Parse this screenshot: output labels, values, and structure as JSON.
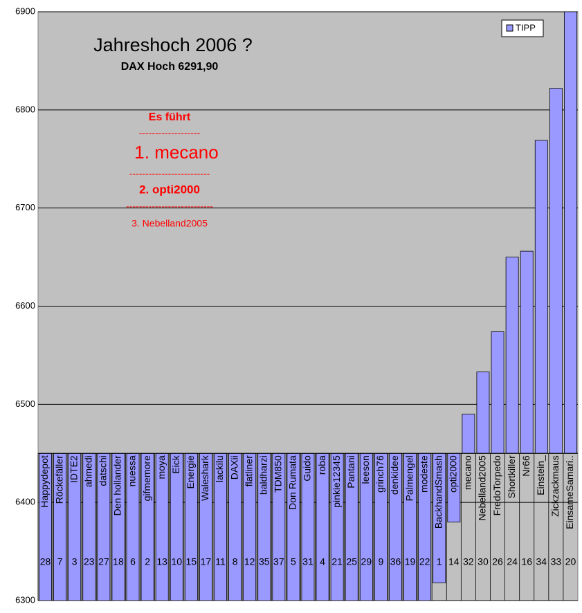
{
  "chart_data": {
    "type": "bar",
    "title": "Jahreshoch 2006 ?",
    "subtitle": "DAX Hoch 6291,90",
    "annotations": [
      "Es führt",
      "-------------------",
      "1.    mecano",
      "-------------------------",
      "2.   opti2000",
      "---------------------------",
      "3.          Nebelland2005"
    ],
    "categories": [
      "Happydepot",
      "Röckefäller",
      "IDTE2",
      "ahmedi",
      "datschi",
      "Den hollander",
      "nuessa",
      "gifmemore",
      "moya",
      "Eick",
      "Energie",
      "Waleshark",
      "lackilu",
      "DAXii",
      "flatliner",
      "baldharzi",
      "TDM850",
      "Don Rumata",
      "Guido",
      "roba",
      "pinkie12345",
      "Pantani",
      "leeson",
      "grinch76",
      "denkidee",
      "Palmengel",
      "modeste",
      "BackhandSmash",
      "opti2000",
      "mecano",
      "Nebelland2005",
      "FredoTorpedo",
      "Shortkiller",
      "Nr66",
      "Einstein_",
      "Zickzackmaus",
      "EinsameSamari.."
    ],
    "ranks": [
      28,
      7,
      3,
      23,
      27,
      18,
      6,
      2,
      13,
      10,
      15,
      17,
      11,
      8,
      12,
      35,
      37,
      5,
      31,
      4,
      21,
      25,
      29,
      9,
      36,
      19,
      22,
      1,
      14,
      32,
      30,
      26,
      24,
      16,
      34,
      33,
      20
    ],
    "series": [
      {
        "name": "TIPP",
        "color": "#9999ff",
        "values": [
          6300,
          6300,
          6300,
          6300,
          6300,
          6300,
          6300,
          6300,
          6300,
          6300,
          6300,
          6300,
          6300,
          6300,
          6300,
          6300,
          6300,
          6300,
          6300,
          6300,
          6300,
          6300,
          6300,
          6300,
          6300,
          6300,
          6300,
          6318,
          6380,
          6490,
          6533,
          6574,
          6650,
          6656,
          6769,
          6822,
          6900
        ]
      }
    ],
    "ylim": [
      6300,
      6900
    ],
    "yticks": [
      6300,
      6400,
      6500,
      6600,
      6700,
      6800,
      6900
    ],
    "x_axis_crossing": 6450,
    "grid": true,
    "legend": "top-right"
  }
}
